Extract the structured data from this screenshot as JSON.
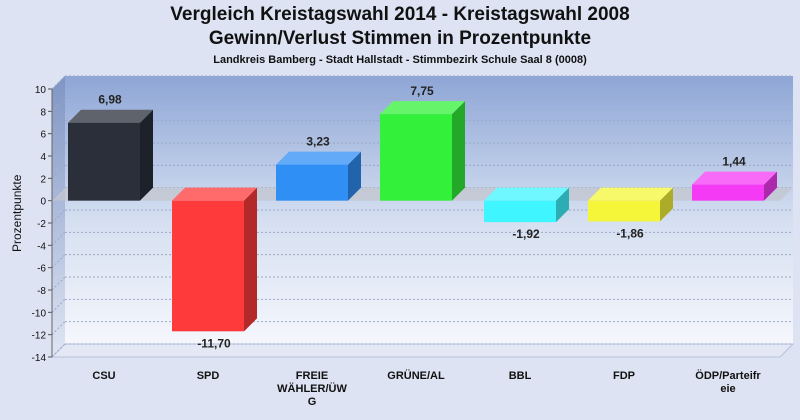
{
  "header": {
    "title_line1": "Vergleich Kreistagswahl 2014 - Kreistagswahl 2008",
    "title_line2": "Gewinn/Verlust Stimmen in Prozentpunkte",
    "subtitle": "Landkreis Bamberg - Stadt Hallstadt - Stimmbezirk Schule Saal 8 (0008)"
  },
  "chart_data": {
    "type": "bar",
    "title": "Vergleich Kreistagswahl 2014 - Kreistagswahl 2008 Gewinn/Verlust Stimmen in Prozentpunkte",
    "subtitle": "Landkreis Bamberg - Stadt Hallstadt - Stimmbezirk Schule Saal 8 (0008)",
    "xlabel": "",
    "ylabel": "Prozentpunkte",
    "ylim": [
      -14,
      10
    ],
    "yticks": [
      10,
      8,
      6,
      4,
      2,
      0,
      -2,
      -4,
      -6,
      -8,
      -10,
      -12,
      -14
    ],
    "grid": true,
    "categories": [
      "CSU",
      "SPD",
      "FREIE WÄHLER/ÜW G",
      "GRÜNE/AL",
      "BBL",
      "FDP",
      "ÖDP/Parteifr eie"
    ],
    "category_lines": [
      [
        "CSU"
      ],
      [
        "SPD"
      ],
      [
        "FREIE",
        "WÄHLER/ÜW",
        "G"
      ],
      [
        "GRÜNE/AL"
      ],
      [
        "BBL"
      ],
      [
        "FDP"
      ],
      [
        "ÖDP/Parteifr",
        "eie"
      ]
    ],
    "values": [
      6.98,
      -11.7,
      3.23,
      7.75,
      -1.92,
      -1.86,
      1.44
    ],
    "value_labels": [
      "6,98",
      "-11,70",
      "3,23",
      "7,75",
      "-1,92",
      "-1,86",
      "1,44"
    ],
    "colors": [
      "#2a2f3a",
      "#ff3a3a",
      "#2f8ff5",
      "#33f03a",
      "#3ff5ff",
      "#f5f53a",
      "#f53af5"
    ]
  }
}
